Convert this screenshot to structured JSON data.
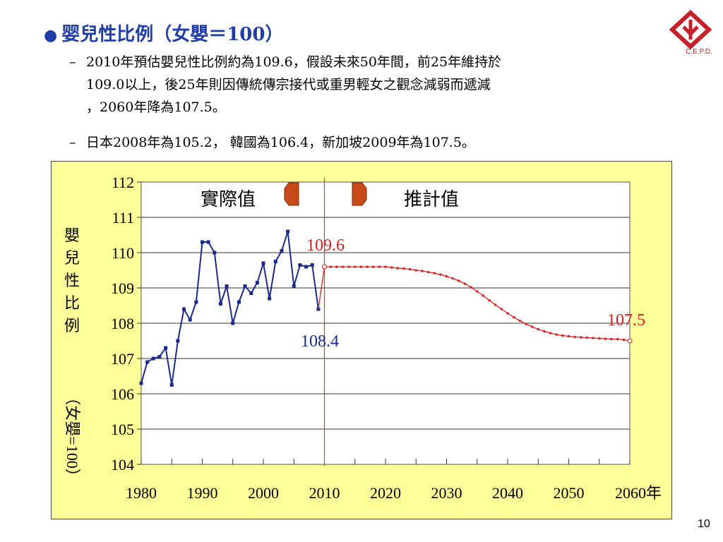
{
  "title": "婴兒性比例（女嬰＝100）",
  "bullets": [
    {
      "line1": "2010年預估嬰兒性比例約為109.6，假設未來50年間，前25年維持於",
      "line2": "109.0以上，後25年則因傳統傳宗接代或重男輕女之觀念減弱而遞減",
      "line3": "，2060年降為107.5。"
    },
    {
      "line1": "日本2008年為105.2， 韓國為106.4，新加坡2009年為107.5。"
    }
  ],
  "dash": "–",
  "logo": {
    "text": "C.E.P.D.",
    "color": "#c8202a"
  },
  "page_number": "10",
  "chart_data": {
    "type": "line",
    "ylabel_chars": [
      "嬰",
      "兒",
      "性",
      "比",
      "例"
    ],
    "ylabel_unit": "（女嬰=100）",
    "ylim": [
      104,
      112
    ],
    "yticks": [
      "104",
      "105",
      "106",
      "107",
      "108",
      "109",
      "110",
      "111",
      "112"
    ],
    "xlim": [
      1980,
      2060
    ],
    "xticks": [
      "1980",
      "1990",
      "2000",
      "2010",
      "2020",
      "2030",
      "2040",
      "2050",
      "2060年"
    ],
    "xtick_values": [
      1980,
      1990,
      2000,
      2010,
      2020,
      2030,
      2040,
      2050,
      2060
    ],
    "grid": "horizontal",
    "annotations": {
      "actual_label": "實際值",
      "projected_label": "推計值",
      "start_projection": "109.6",
      "last_actual": "108.4",
      "end_projection": "107.5"
    },
    "divider_year": 2010,
    "series": [
      {
        "color": "#1a2a8c",
        "x": [
          1980,
          1981,
          1982,
          1983,
          1984,
          1985,
          1986,
          1987,
          1988,
          1989,
          1990,
          1991,
          1992,
          1993,
          1994,
          1995,
          1996,
          1997,
          1998,
          1999,
          2000,
          2001,
          2002,
          2003,
          2004,
          2005,
          2006,
          2007,
          2008,
          2009
        ],
        "y": [
          106.3,
          106.9,
          107.0,
          107.05,
          107.3,
          106.25,
          107.5,
          108.4,
          108.1,
          108.6,
          110.3,
          110.3,
          110.0,
          108.55,
          109.05,
          108.0,
          108.6,
          109.05,
          108.85,
          109.15,
          109.7,
          108.7,
          109.75,
          110.05,
          110.6,
          109.05,
          109.65,
          109.6,
          109.65,
          108.4
        ]
      },
      {
        "color": "#e02020",
        "x": [
          2010,
          2011,
          2012,
          2013,
          2014,
          2015,
          2016,
          2017,
          2018,
          2019,
          2020,
          2021,
          2022,
          2023,
          2024,
          2025,
          2026,
          2027,
          2028,
          2029,
          2030,
          2031,
          2032,
          2033,
          2034,
          2035,
          2036,
          2037,
          2038,
          2039,
          2040,
          2041,
          2042,
          2043,
          2044,
          2045,
          2046,
          2047,
          2048,
          2049,
          2050,
          2051,
          2052,
          2053,
          2054,
          2055,
          2056,
          2057,
          2058,
          2059,
          2060
        ],
        "y": [
          109.6,
          109.6,
          109.6,
          109.6,
          109.6,
          109.6,
          109.6,
          109.6,
          109.6,
          109.6,
          109.6,
          109.58,
          109.56,
          109.55,
          109.53,
          109.5,
          109.48,
          109.45,
          109.42,
          109.38,
          109.33,
          109.27,
          109.2,
          109.12,
          109.02,
          108.9,
          108.78,
          108.65,
          108.52,
          108.4,
          108.28,
          108.17,
          108.07,
          107.98,
          107.9,
          107.83,
          107.77,
          107.72,
          107.68,
          107.65,
          107.63,
          107.61,
          107.6,
          107.59,
          107.58,
          107.57,
          107.56,
          107.55,
          107.55,
          107.53,
          107.5
        ]
      }
    ]
  }
}
